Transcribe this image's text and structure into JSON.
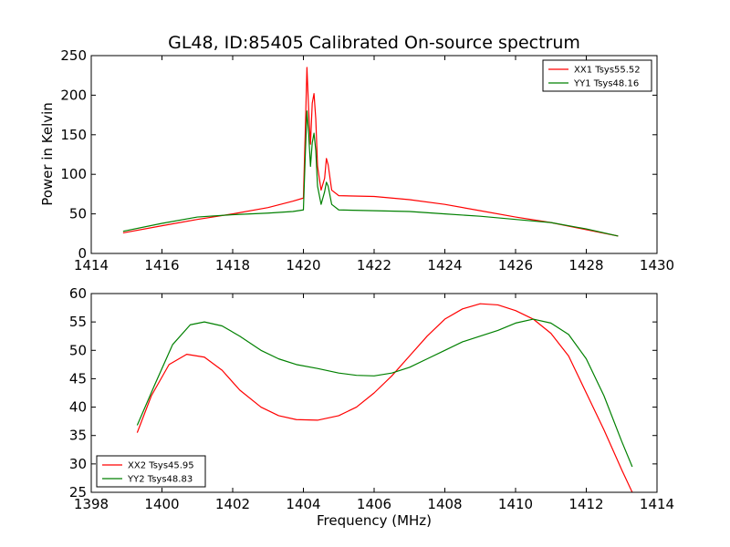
{
  "chart_data": [
    {
      "type": "line",
      "title": "GL48, ID:85405 Calibrated On-source spectrum",
      "xlabel": "",
      "ylabel": "Power in Kelvin",
      "xlim": [
        1414,
        1430
      ],
      "ylim": [
        0,
        250
      ],
      "xticks": [
        1414,
        1416,
        1418,
        1420,
        1422,
        1424,
        1426,
        1428,
        1430
      ],
      "yticks": [
        0,
        50,
        100,
        150,
        200,
        250
      ],
      "grid": false,
      "legend_position": "top-right",
      "series": [
        {
          "name": "XX1 Tsys55.52",
          "color": "#ff0000",
          "points": [
            [
              1414.9,
              26
            ],
            [
              1416,
              35
            ],
            [
              1417,
              43
            ],
            [
              1418,
              50
            ],
            [
              1419,
              58
            ],
            [
              1419.7,
              66
            ],
            [
              1420.0,
              70
            ],
            [
              1420.05,
              150
            ],
            [
              1420.1,
              235
            ],
            [
              1420.15,
              180
            ],
            [
              1420.2,
              138
            ],
            [
              1420.25,
              190
            ],
            [
              1420.3,
              202
            ],
            [
              1420.35,
              170
            ],
            [
              1420.4,
              110
            ],
            [
              1420.5,
              80
            ],
            [
              1420.6,
              95
            ],
            [
              1420.65,
              120
            ],
            [
              1420.7,
              112
            ],
            [
              1420.8,
              80
            ],
            [
              1421,
              73
            ],
            [
              1422,
              72
            ],
            [
              1423,
              68
            ],
            [
              1424,
              62
            ],
            [
              1425,
              54
            ],
            [
              1426,
              46
            ],
            [
              1427,
              39
            ],
            [
              1428,
              30
            ],
            [
              1428.9,
              22
            ]
          ]
        },
        {
          "name": "YY1 Tsys48.16",
          "color": "#008000",
          "points": [
            [
              1414.9,
              28
            ],
            [
              1416,
              38
            ],
            [
              1417,
              46
            ],
            [
              1418,
              49
            ],
            [
              1419,
              51
            ],
            [
              1419.7,
              53
            ],
            [
              1420.0,
              55
            ],
            [
              1420.05,
              120
            ],
            [
              1420.1,
              180
            ],
            [
              1420.15,
              150
            ],
            [
              1420.2,
              110
            ],
            [
              1420.25,
              140
            ],
            [
              1420.3,
              152
            ],
            [
              1420.35,
              130
            ],
            [
              1420.4,
              85
            ],
            [
              1420.5,
              62
            ],
            [
              1420.6,
              78
            ],
            [
              1420.65,
              90
            ],
            [
              1420.7,
              85
            ],
            [
              1420.8,
              62
            ],
            [
              1421,
              55
            ],
            [
              1422,
              54
            ],
            [
              1423,
              53
            ],
            [
              1424,
              50
            ],
            [
              1425,
              47
            ],
            [
              1426,
              43
            ],
            [
              1427,
              39
            ],
            [
              1428,
              31
            ],
            [
              1428.9,
              22
            ]
          ]
        }
      ]
    },
    {
      "type": "line",
      "title": "",
      "xlabel": "Frequency (MHz)",
      "ylabel": "",
      "xlim": [
        1398,
        1414
      ],
      "ylim": [
        25,
        60
      ],
      "xticks": [
        1398,
        1400,
        1402,
        1404,
        1406,
        1408,
        1410,
        1412,
        1414
      ],
      "yticks": [
        25,
        30,
        35,
        40,
        45,
        50,
        55,
        60
      ],
      "grid": false,
      "legend_position": "bottom-left",
      "series": [
        {
          "name": "XX2 Tsys45.95",
          "color": "#ff0000",
          "points": [
            [
              1399.3,
              35.5
            ],
            [
              1399.7,
              42
            ],
            [
              1400.2,
              47.5
            ],
            [
              1400.7,
              49.3
            ],
            [
              1401.2,
              48.8
            ],
            [
              1401.7,
              46.5
            ],
            [
              1402.2,
              43
            ],
            [
              1402.8,
              40
            ],
            [
              1403.3,
              38.5
            ],
            [
              1403.8,
              37.8
            ],
            [
              1404.4,
              37.7
            ],
            [
              1405,
              38.5
            ],
            [
              1405.5,
              40
            ],
            [
              1406,
              42.5
            ],
            [
              1406.5,
              45.5
            ],
            [
              1407,
              49
            ],
            [
              1407.5,
              52.5
            ],
            [
              1408,
              55.5
            ],
            [
              1408.5,
              57.3
            ],
            [
              1409,
              58.2
            ],
            [
              1409.5,
              58
            ],
            [
              1410,
              57
            ],
            [
              1410.5,
              55.5
            ],
            [
              1411,
              53
            ],
            [
              1411.5,
              49
            ],
            [
              1412,
              42.5
            ],
            [
              1412.5,
              36
            ],
            [
              1413,
              29
            ],
            [
              1413.3,
              25
            ]
          ]
        },
        {
          "name": "YY2 Tsys48.83",
          "color": "#008000",
          "points": [
            [
              1399.3,
              36.8
            ],
            [
              1399.8,
              44
            ],
            [
              1400.3,
              51
            ],
            [
              1400.8,
              54.5
            ],
            [
              1401.2,
              55
            ],
            [
              1401.7,
              54.3
            ],
            [
              1402.2,
              52.5
            ],
            [
              1402.8,
              50
            ],
            [
              1403.3,
              48.5
            ],
            [
              1403.8,
              47.5
            ],
            [
              1404.4,
              46.8
            ],
            [
              1405,
              46
            ],
            [
              1405.5,
              45.6
            ],
            [
              1406,
              45.5
            ],
            [
              1406.5,
              46
            ],
            [
              1407,
              47
            ],
            [
              1407.5,
              48.5
            ],
            [
              1408,
              50
            ],
            [
              1408.5,
              51.5
            ],
            [
              1409,
              52.5
            ],
            [
              1409.5,
              53.5
            ],
            [
              1410,
              54.8
            ],
            [
              1410.5,
              55.5
            ],
            [
              1411,
              54.8
            ],
            [
              1411.5,
              52.8
            ],
            [
              1412,
              48.5
            ],
            [
              1412.5,
              42
            ],
            [
              1413,
              34
            ],
            [
              1413.3,
              29.5
            ]
          ]
        }
      ]
    }
  ]
}
